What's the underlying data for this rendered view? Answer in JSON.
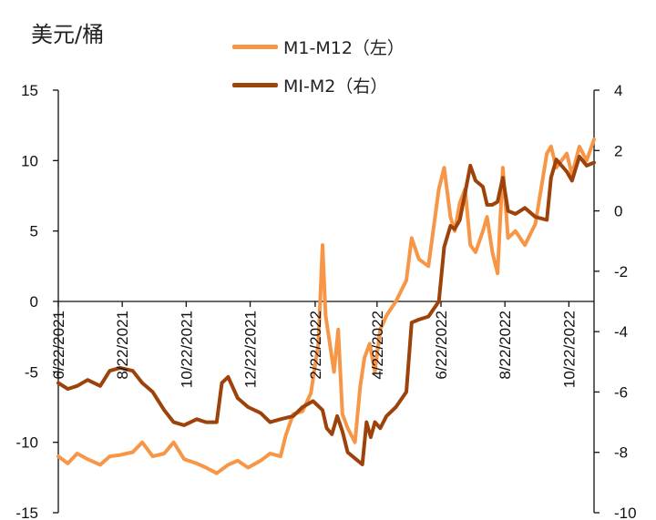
{
  "unit_label": "美元/桶",
  "colors": {
    "m1_m12": "#F79646",
    "mi_m2": "#9C420A",
    "axis": "#111111"
  },
  "chart_data": {
    "type": "line",
    "title": "",
    "ylabel_left": "美元/桶",
    "ylim_left": [
      -15,
      15
    ],
    "yticks_left": [
      -15,
      -10,
      -5,
      0,
      5,
      10,
      15
    ],
    "ylim_right": [
      -10,
      4
    ],
    "yticks_right": [
      -10,
      -8,
      -6,
      -4,
      -2,
      0,
      2,
      4
    ],
    "x_range": [
      "2021-06-22",
      "2022-11-15"
    ],
    "x_tick_labels": [
      "6/22/2021",
      "8/22/2021",
      "10/22/2021",
      "12/22/2021",
      "2/22/2022",
      "4/22/2022",
      "6/22/2022",
      "8/22/2022",
      "10/22/2022"
    ],
    "x_tick_dates": [
      "2021-06-22",
      "2021-08-22",
      "2021-10-22",
      "2021-12-22",
      "2022-02-22",
      "2022-04-22",
      "2022-06-22",
      "2022-08-22",
      "2022-10-22"
    ],
    "legend_position": "top",
    "series": [
      {
        "name": "M1-M12（左）",
        "axis": "left",
        "x": [
          "2021-06-22",
          "2021-07-01",
          "2021-07-10",
          "2021-07-20",
          "2021-08-01",
          "2021-08-10",
          "2021-08-20",
          "2021-09-01",
          "2021-09-10",
          "2021-09-20",
          "2021-10-01",
          "2021-10-10",
          "2021-10-20",
          "2021-11-01",
          "2021-11-10",
          "2021-11-20",
          "2021-12-01",
          "2021-12-10",
          "2021-12-20",
          "2022-01-01",
          "2022-01-10",
          "2022-01-20",
          "2022-01-25",
          "2022-02-01",
          "2022-02-10",
          "2022-02-18",
          "2022-02-25",
          "2022-03-01",
          "2022-03-04",
          "2022-03-08",
          "2022-03-12",
          "2022-03-16",
          "2022-03-20",
          "2022-03-25",
          "2022-04-01",
          "2022-04-06",
          "2022-04-10",
          "2022-04-15",
          "2022-04-20",
          "2022-04-25",
          "2022-05-01",
          "2022-05-10",
          "2022-05-20",
          "2022-05-25",
          "2022-06-01",
          "2022-06-10",
          "2022-06-20",
          "2022-06-25",
          "2022-07-01",
          "2022-07-05",
          "2022-07-10",
          "2022-07-15",
          "2022-07-20",
          "2022-07-25",
          "2022-08-01",
          "2022-08-05",
          "2022-08-10",
          "2022-08-15",
          "2022-08-20",
          "2022-08-25",
          "2022-09-01",
          "2022-09-10",
          "2022-09-20",
          "2022-10-01",
          "2022-10-05",
          "2022-10-10",
          "2022-10-20",
          "2022-10-25",
          "2022-11-01",
          "2022-11-08",
          "2022-11-15"
        ],
        "values": [
          -11.0,
          -11.5,
          -10.8,
          -11.2,
          -11.6,
          -11.0,
          -10.9,
          -10.7,
          -10.0,
          -11.0,
          -10.8,
          -10.0,
          -11.2,
          -11.5,
          -11.8,
          -12.2,
          -11.6,
          -11.3,
          -11.8,
          -11.3,
          -10.8,
          -11.0,
          -9.5,
          -8.0,
          -7.8,
          -6.5,
          -3.0,
          4.0,
          -1.0,
          -3.0,
          -5.0,
          -2.0,
          -8.0,
          -9.0,
          -10.0,
          -6.0,
          -4.0,
          -3.0,
          -5.0,
          -2.0,
          -1.0,
          0.0,
          1.5,
          4.5,
          3.0,
          2.5,
          8.0,
          9.5,
          6.0,
          5.0,
          7.0,
          8.0,
          4.0,
          3.5,
          5.0,
          6.0,
          3.5,
          2.0,
          9.5,
          4.5,
          5.0,
          4.0,
          5.5,
          10.5,
          11.0,
          9.5,
          10.5,
          9.0,
          11.0,
          10.0,
          11.5
        ]
      },
      {
        "name": "MI-M2（右）",
        "axis": "right",
        "x": [
          "2021-06-22",
          "2021-07-01",
          "2021-07-10",
          "2021-07-20",
          "2021-08-01",
          "2021-08-10",
          "2021-08-20",
          "2021-09-01",
          "2021-09-10",
          "2021-09-20",
          "2021-10-01",
          "2021-10-10",
          "2021-10-20",
          "2021-11-01",
          "2021-11-10",
          "2021-11-20",
          "2021-11-25",
          "2021-12-01",
          "2021-12-10",
          "2021-12-20",
          "2022-01-01",
          "2022-01-10",
          "2022-01-20",
          "2022-02-01",
          "2022-02-10",
          "2022-02-20",
          "2022-03-01",
          "2022-03-05",
          "2022-03-10",
          "2022-03-15",
          "2022-03-20",
          "2022-03-25",
          "2022-04-01",
          "2022-04-08",
          "2022-04-12",
          "2022-04-16",
          "2022-04-20",
          "2022-04-25",
          "2022-05-01",
          "2022-05-10",
          "2022-05-20",
          "2022-05-25",
          "2022-06-01",
          "2022-06-10",
          "2022-06-20",
          "2022-06-25",
          "2022-07-01",
          "2022-07-05",
          "2022-07-10",
          "2022-07-15",
          "2022-07-20",
          "2022-07-25",
          "2022-08-01",
          "2022-08-05",
          "2022-08-10",
          "2022-08-15",
          "2022-08-20",
          "2022-08-25",
          "2022-09-01",
          "2022-09-10",
          "2022-09-20",
          "2022-10-01",
          "2022-10-05",
          "2022-10-10",
          "2022-10-20",
          "2022-10-25",
          "2022-11-01",
          "2022-11-08",
          "2022-11-15"
        ],
        "values": [
          -5.7,
          -5.9,
          -5.8,
          -5.6,
          -5.8,
          -5.3,
          -5.2,
          -5.3,
          -5.7,
          -6.0,
          -6.6,
          -7.0,
          -7.1,
          -6.9,
          -7.0,
          -7.0,
          -5.7,
          -5.5,
          -6.2,
          -6.5,
          -6.7,
          -7.0,
          -6.9,
          -6.8,
          -6.5,
          -6.3,
          -6.6,
          -7.2,
          -7.4,
          -6.8,
          -7.3,
          -8.0,
          -8.2,
          -8.4,
          -7.0,
          -7.5,
          -7.0,
          -7.2,
          -6.8,
          -6.5,
          -6.0,
          -3.7,
          -3.6,
          -3.5,
          -3.0,
          -1.2,
          -0.5,
          -0.6,
          -0.3,
          0.6,
          1.5,
          1.0,
          0.8,
          0.2,
          0.2,
          0.3,
          1.1,
          0.0,
          -0.1,
          0.1,
          -0.2,
          -0.3,
          1.1,
          1.7,
          1.3,
          1.0,
          1.8,
          1.5,
          1.6
        ]
      }
    ]
  },
  "legend": [
    {
      "label": "M1-M12（左）",
      "color": "#F79646"
    },
    {
      "label": "MI-M2（右）",
      "color": "#9C420A"
    }
  ]
}
